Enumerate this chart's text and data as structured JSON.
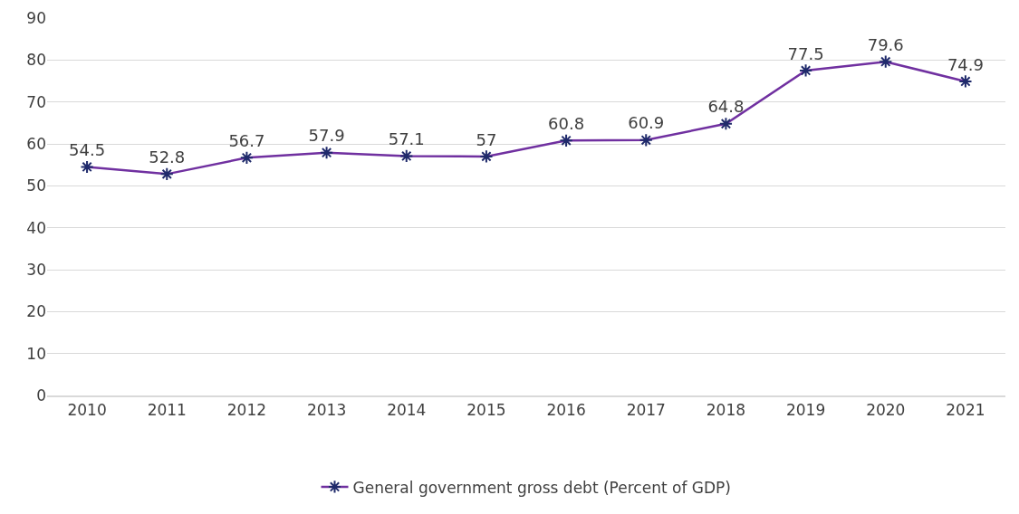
{
  "chart_data": {
    "type": "line",
    "categories": [
      "2010",
      "2011",
      "2012",
      "2013",
      "2014",
      "2015",
      "2016",
      "2017",
      "2018",
      "2019",
      "2020",
      "2021"
    ],
    "series": [
      {
        "name": "General government gross debt (Percent of GDP)",
        "color": "#7030a0",
        "values": [
          54.5,
          52.8,
          56.7,
          57.9,
          57.1,
          57,
          60.8,
          60.9,
          64.8,
          77.5,
          79.6,
          74.9
        ]
      }
    ],
    "ylim": [
      0,
      90
    ],
    "yticks": [
      0,
      10,
      20,
      30,
      40,
      50,
      60,
      70,
      80,
      90
    ],
    "grid": "y",
    "legend": "bottom",
    "marker": "cross",
    "line_style": "solid",
    "data_labels": true
  }
}
